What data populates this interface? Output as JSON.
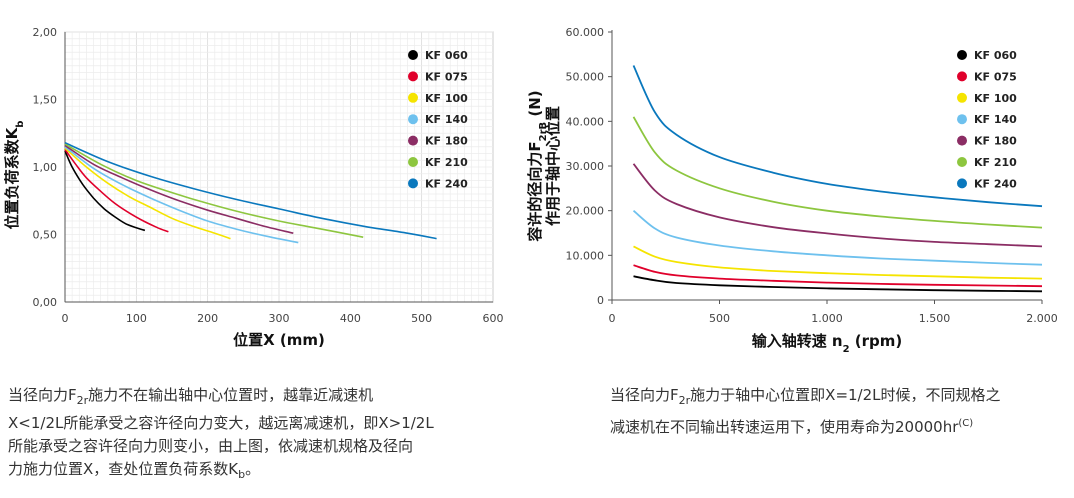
{
  "chart_data": [
    {
      "type": "line",
      "xlabel": "位置X (mm)",
      "ylabel": "位置负荷系数K",
      "ylabel_sub": "b",
      "xlim": [
        0,
        600
      ],
      "ylim": [
        0,
        2
      ],
      "x_ticks": [
        "0",
        "100",
        "200",
        "300",
        "400",
        "500",
        "600"
      ],
      "y_ticks": [
        "0,00",
        "0,50",
        "1,00",
        "1,50",
        "2,00"
      ],
      "grid": true,
      "legend_position": "top-right",
      "series": [
        {
          "name": "KF 060",
          "color": "#000000",
          "x": [
            0,
            10,
            25,
            40,
            55,
            70,
            85,
            100,
            112
          ],
          "y": [
            1.12,
            1.0,
            0.87,
            0.77,
            0.69,
            0.63,
            0.58,
            0.55,
            0.53
          ]
        },
        {
          "name": "KF 075",
          "color": "#e0002b",
          "x": [
            0,
            15,
            30,
            50,
            70,
            90,
            110,
            130,
            145
          ],
          "y": [
            1.13,
            1.02,
            0.92,
            0.82,
            0.73,
            0.66,
            0.6,
            0.55,
            0.52
          ]
        },
        {
          "name": "KF 100",
          "color": "#f5e400",
          "x": [
            0,
            30,
            60,
            90,
            120,
            150,
            180,
            210,
            232
          ],
          "y": [
            1.14,
            1.0,
            0.88,
            0.78,
            0.7,
            0.62,
            0.56,
            0.51,
            0.47
          ]
        },
        {
          "name": "KF 140",
          "color": "#6ec1ee",
          "x": [
            0,
            40,
            80,
            120,
            160,
            200,
            240,
            280,
            327
          ],
          "y": [
            1.15,
            0.99,
            0.87,
            0.77,
            0.68,
            0.6,
            0.54,
            0.49,
            0.44
          ]
        },
        {
          "name": "KF 180",
          "color": "#8b2d64",
          "x": [
            0,
            40,
            80,
            120,
            160,
            200,
            240,
            280,
            320
          ],
          "y": [
            1.16,
            1.02,
            0.92,
            0.83,
            0.75,
            0.68,
            0.62,
            0.56,
            0.51
          ]
        },
        {
          "name": "KF 210",
          "color": "#8dc63f",
          "x": [
            0,
            50,
            100,
            150,
            200,
            250,
            300,
            350,
            418
          ],
          "y": [
            1.17,
            1.02,
            0.9,
            0.81,
            0.73,
            0.66,
            0.6,
            0.55,
            0.48
          ]
        },
        {
          "name": "KF 240",
          "color": "#0a78bd",
          "x": [
            0,
            60,
            120,
            180,
            240,
            300,
            360,
            420,
            480,
            521
          ],
          "y": [
            1.18,
            1.04,
            0.93,
            0.84,
            0.76,
            0.69,
            0.62,
            0.56,
            0.51,
            0.47
          ]
        }
      ]
    },
    {
      "type": "line",
      "xlabel": "输入轴转速 n",
      "xlabel_sub": "2",
      "xlabel_suffix": " (rpm)",
      "ylabel_line1": "容许的径向力F",
      "ylabel_line1_sub": "2rB",
      "ylabel_line1_suffix": " (N)",
      "ylabel_line2": "作用于轴中心位置",
      "xlim": [
        0,
        2000
      ],
      "ylim": [
        0,
        60000
      ],
      "x_ticks": [
        "0",
        "500",
        "1.000",
        "1.500",
        "2.000"
      ],
      "y_ticks": [
        "0",
        "10.000",
        "20.000",
        "30.000",
        "40.000",
        "50.000",
        "60.000"
      ],
      "grid": false,
      "legend_position": "top-right",
      "series": [
        {
          "name": "KF 060",
          "color": "#000000",
          "x": [
            100,
            200,
            300,
            500,
            750,
            1000,
            1250,
            1500,
            1750,
            2000
          ],
          "y": [
            5300,
            4400,
            3800,
            3300,
            2900,
            2600,
            2400,
            2200,
            2050,
            1950
          ]
        },
        {
          "name": "KF 075",
          "color": "#e0002b",
          "x": [
            100,
            200,
            300,
            500,
            750,
            1000,
            1250,
            1500,
            1750,
            2000
          ],
          "y": [
            7800,
            6300,
            5500,
            4800,
            4300,
            3900,
            3600,
            3400,
            3250,
            3100
          ]
        },
        {
          "name": "KF 100",
          "color": "#f5e400",
          "x": [
            100,
            200,
            300,
            500,
            750,
            1000,
            1250,
            1500,
            1750,
            2000
          ],
          "y": [
            12000,
            9700,
            8500,
            7300,
            6500,
            6000,
            5600,
            5300,
            5000,
            4800
          ]
        },
        {
          "name": "KF 140",
          "color": "#6ec1ee",
          "x": [
            100,
            200,
            300,
            500,
            750,
            1000,
            1250,
            1500,
            1750,
            2000
          ],
          "y": [
            20000,
            16000,
            14000,
            12200,
            10900,
            10000,
            9300,
            8800,
            8300,
            7900
          ]
        },
        {
          "name": "KF 180",
          "color": "#8b2d64",
          "x": [
            100,
            200,
            300,
            500,
            750,
            1000,
            1250,
            1500,
            1750,
            2000
          ],
          "y": [
            30500,
            24500,
            21500,
            18500,
            16300,
            14900,
            13800,
            13000,
            12500,
            12000
          ]
        },
        {
          "name": "KF 210",
          "color": "#8dc63f",
          "x": [
            100,
            200,
            300,
            500,
            750,
            1000,
            1250,
            1500,
            1750,
            2000
          ],
          "y": [
            41000,
            33000,
            29000,
            25000,
            22000,
            20000,
            18700,
            17700,
            16900,
            16200
          ]
        },
        {
          "name": "KF 240",
          "color": "#0a78bd",
          "x": [
            100,
            200,
            300,
            500,
            750,
            1000,
            1250,
            1500,
            1750,
            2000
          ],
          "y": [
            52500,
            42000,
            37000,
            32000,
            28500,
            26000,
            24300,
            23000,
            21900,
            21000
          ]
        }
      ]
    }
  ],
  "captions": {
    "left": {
      "p1": "当径向力F",
      "p1_sub": "2r",
      "p2": "施力不在输出轴中心位置时，越靠近减速机\nX<1/2L所能承受之容许径向力变大，越远离减速机，即X>1/2L\n所能承受之容许径向力则变小，由上图，依减速机规格及径向\n力施力位置X，查处位置负荷系数K",
      "p2_sub": "b",
      "p3": "。"
    },
    "right": {
      "p1": "当径向力F",
      "p1_sub": "2r",
      "p2": "施力于轴中心位置即X=1/2L时候，不同规格之\n减速机在不同输出转速运用下，使用寿命为20000hr",
      "p2_sup": "(C)"
    }
  }
}
